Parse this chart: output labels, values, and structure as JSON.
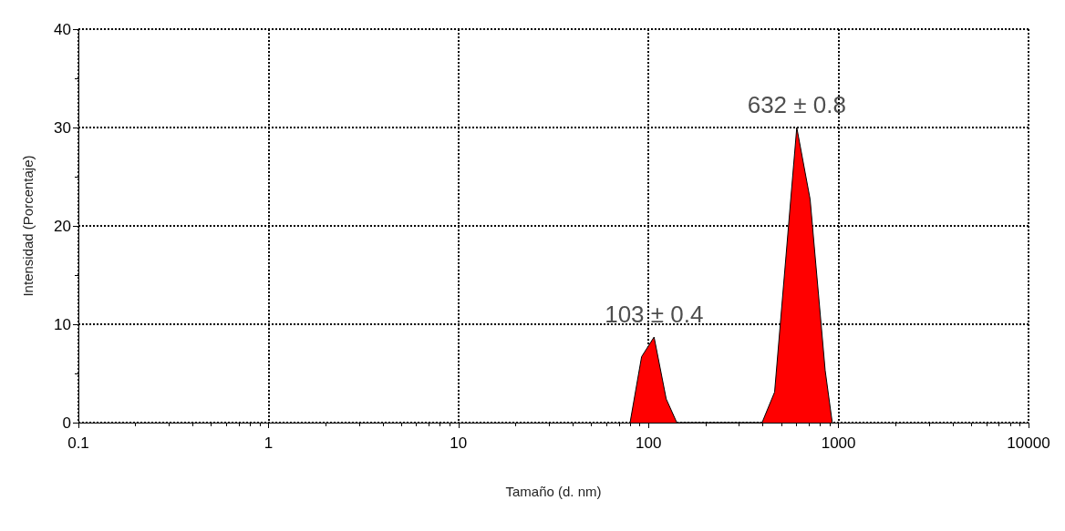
{
  "chart_data": {
    "type": "area",
    "xlabel": "Tamaño (d. nm)",
    "ylabel": "Intensidad (Porcentaje)",
    "log": "x",
    "xlim": [
      0.1,
      10000
    ],
    "xticks": [
      0.1,
      1,
      10,
      100,
      1000,
      10000
    ],
    "ylim": [
      0,
      40
    ],
    "yticks": [
      0,
      10,
      20,
      30,
      40
    ],
    "grid": true,
    "marker": "none",
    "series": [
      {
        "color": "#ff0000",
        "x": [
          80,
          92,
          107,
          124,
          141,
          396,
          461,
          603,
          709,
          851,
          927
        ],
        "values": [
          0,
          6.7,
          8.7,
          2.4,
          0,
          0,
          3.1,
          30.0,
          22.7,
          5.3,
          0
        ]
      }
    ],
    "annotations": [
      {
        "text": "103 ± 0.4",
        "x": 107,
        "y": 8.7
      },
      {
        "text": "632 ± 0.8",
        "x": 603,
        "y": 30.0
      }
    ]
  }
}
